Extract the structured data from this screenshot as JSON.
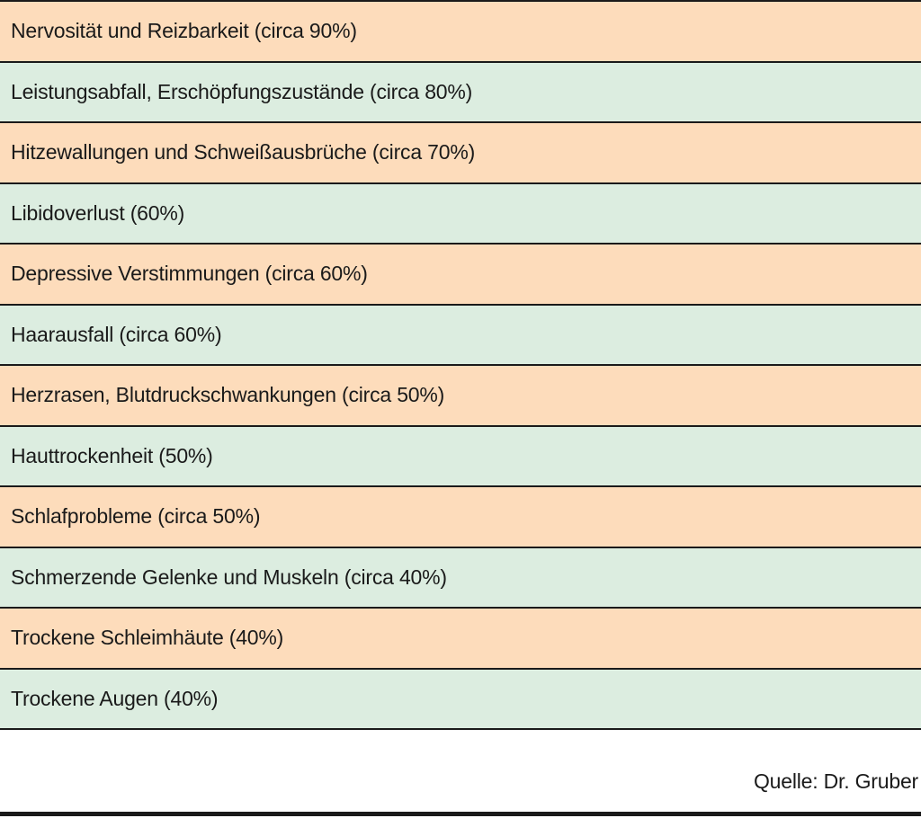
{
  "table": {
    "rows": [
      {
        "label": "Nervosität und Reizbarkeit (circa 90%)",
        "color": "#fddcbb"
      },
      {
        "label": "Leistungsabfall, Erschöpfungszustände (circa 80%)",
        "color": "#dcede0"
      },
      {
        "label": "Hitzewallungen und Schweißausbrüche (circa 70%)",
        "color": "#fddcbb"
      },
      {
        "label": "Libidoverlust (60%)",
        "color": "#dcede0"
      },
      {
        "label": "Depressive Verstimmungen (circa 60%)",
        "color": "#fddcbb"
      },
      {
        "label": "Haarausfall (circa 60%)",
        "color": "#dcede0"
      },
      {
        "label": "Herzrasen, Blutdruckschwankungen (circa 50%)",
        "color": "#fddcbb"
      },
      {
        "label": "Hauttrockenheit (50%)",
        "color": "#dcede0"
      },
      {
        "label": "Schlafprobleme (circa 50%)",
        "color": "#fddcbb"
      },
      {
        "label": "Schmerzende Gelenke und Muskeln (circa 40%)",
        "color": "#dcede0"
      },
      {
        "label": "Trockene Schleimhäute (40%)",
        "color": "#fddcbb"
      },
      {
        "label": "Trockene Augen (40%)",
        "color": "#dcede0"
      }
    ]
  },
  "source": "Quelle: Dr. Gruber"
}
